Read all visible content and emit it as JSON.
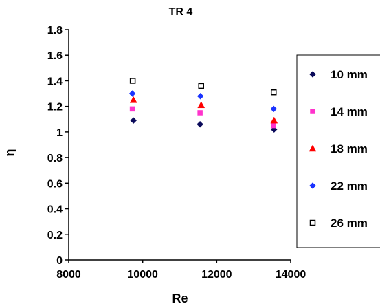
{
  "chart_data": {
    "type": "scatter",
    "title": "TR 4",
    "xlabel": "Re",
    "ylabel": "η",
    "xlim": [
      8000,
      14000
    ],
    "ylim": [
      0,
      1.8
    ],
    "x_ticks": [
      "8000",
      "10000",
      "12000",
      "14000"
    ],
    "y_ticks": [
      "0",
      "0.2",
      "0.4",
      "0.6",
      "0.8",
      "1",
      "1.2",
      "1.4",
      "1.6",
      "1.8"
    ],
    "grid": false,
    "legend_position": "right",
    "series": [
      {
        "name": "10 mm",
        "marker": "diamond",
        "color": "#0a0a5a",
        "fill": true,
        "x": [
          9750,
          11550,
          13550
        ],
        "y": [
          1.09,
          1.06,
          1.02
        ]
      },
      {
        "name": "14 mm",
        "marker": "square",
        "color": "#ff33cc",
        "fill": true,
        "x": [
          9720,
          11550,
          13540
        ],
        "y": [
          1.18,
          1.15,
          1.05
        ]
      },
      {
        "name": "18 mm",
        "marker": "triangle",
        "color": "#ff0000",
        "fill": true,
        "x": [
          9750,
          11580,
          13550
        ],
        "y": [
          1.25,
          1.21,
          1.09
        ]
      },
      {
        "name": "22 mm",
        "marker": "diamond",
        "color": "#1a33ff",
        "fill": true,
        "x": [
          9720,
          11560,
          13540
        ],
        "y": [
          1.3,
          1.28,
          1.18
        ]
      },
      {
        "name": "26 mm",
        "marker": "square",
        "color": "#000000",
        "fill": false,
        "x": [
          9730,
          11580,
          13540
        ],
        "y": [
          1.4,
          1.36,
          1.31
        ]
      }
    ]
  }
}
